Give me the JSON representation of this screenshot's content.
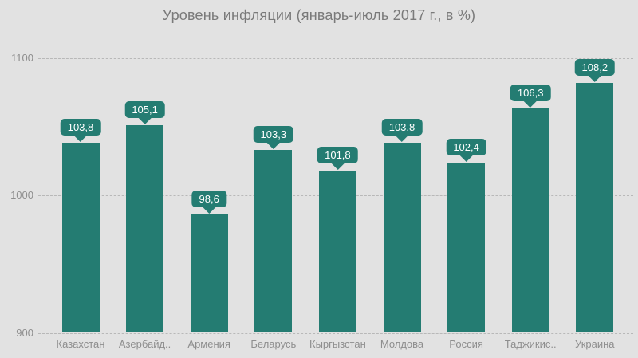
{
  "title": "Уровень инфляции (январь-июль 2017 г., в %)",
  "colors": {
    "background": "#e2e2e2",
    "bar": "#247c72",
    "bubble": "#247c72",
    "bubble_text": "#ffffff",
    "grid": "#b8b8b8",
    "title_text": "#7a7a7a",
    "axis_text": "#8e8e8e"
  },
  "chart_data": {
    "type": "bar",
    "title": "Уровень инфляции (январь-июль 2017 г., в %)",
    "categories": [
      "Казахстан",
      "Азербайд..",
      "Армения",
      "Беларусь",
      "Кыргызстан",
      "Молдова",
      "Россия",
      "Таджикис..",
      "Украина"
    ],
    "values": [
      103.8,
      105.1,
      98.6,
      103.3,
      101.8,
      103.8,
      102.4,
      106.3,
      108.2
    ],
    "value_labels": [
      "103,8",
      "105,1",
      "98,6",
      "103,3",
      "101,8",
      "103,8",
      "102,4",
      "106,3",
      "108,2"
    ],
    "ytick_labels": [
      "900",
      "1000",
      "1100"
    ],
    "yticks": [
      900,
      1000,
      1100
    ],
    "ylim": [
      900,
      1100
    ],
    "bar_plot_scale": 10,
    "xlabel": "",
    "ylabel": "",
    "legend": "none",
    "grid": "horizontal-dashed",
    "data_label_style": "teal callout bubble above each bar with white text"
  }
}
